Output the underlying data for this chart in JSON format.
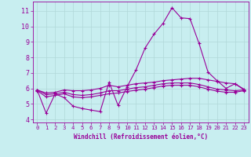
{
  "title": "",
  "xlabel": "Windchill (Refroidissement éolien,°C)",
  "background_color": "#c8eef0",
  "grid_color": "#b0d8d8",
  "line_color": "#990099",
  "xlim": [
    -0.5,
    23.5
  ],
  "ylim": [
    3.8,
    11.6
  ],
  "yticks": [
    4,
    5,
    6,
    7,
    8,
    9,
    10,
    11
  ],
  "xticks": [
    0,
    1,
    2,
    3,
    4,
    5,
    6,
    7,
    8,
    9,
    10,
    11,
    12,
    13,
    14,
    15,
    16,
    17,
    18,
    19,
    20,
    21,
    22,
    23
  ],
  "lines": [
    {
      "x": [
        0,
        1,
        2,
        3,
        4,
        5,
        6,
        7,
        8,
        9,
        10,
        11,
        12,
        13,
        14,
        15,
        16,
        17,
        18,
        19,
        20,
        21,
        22,
        23
      ],
      "y": [
        5.9,
        4.4,
        5.65,
        5.4,
        4.85,
        4.7,
        4.6,
        4.5,
        6.4,
        4.9,
        6.1,
        7.2,
        8.6,
        9.5,
        10.2,
        11.2,
        10.55,
        10.5,
        8.9,
        7.05,
        6.5,
        6.0,
        6.3,
        5.9
      ]
    },
    {
      "x": [
        0,
        1,
        2,
        3,
        4,
        5,
        6,
        7,
        8,
        9,
        10,
        11,
        12,
        13,
        14,
        15,
        16,
        17,
        18,
        19,
        20,
        21,
        22,
        23
      ],
      "y": [
        5.9,
        5.7,
        5.75,
        5.9,
        5.85,
        5.85,
        5.9,
        6.0,
        6.2,
        6.1,
        6.2,
        6.3,
        6.35,
        6.4,
        6.5,
        6.55,
        6.6,
        6.65,
        6.65,
        6.55,
        6.45,
        6.35,
        6.3,
        5.95
      ]
    },
    {
      "x": [
        0,
        1,
        2,
        3,
        4,
        5,
        6,
        7,
        8,
        9,
        10,
        11,
        12,
        13,
        14,
        15,
        16,
        17,
        18,
        19,
        20,
        21,
        22,
        23
      ],
      "y": [
        5.9,
        5.6,
        5.65,
        5.75,
        5.6,
        5.55,
        5.6,
        5.7,
        5.85,
        5.85,
        5.95,
        6.05,
        6.1,
        6.2,
        6.3,
        6.35,
        6.35,
        6.35,
        6.25,
        6.1,
        5.95,
        5.9,
        5.85,
        5.9
      ]
    },
    {
      "x": [
        0,
        1,
        2,
        3,
        4,
        5,
        6,
        7,
        8,
        9,
        10,
        11,
        12,
        13,
        14,
        15,
        16,
        17,
        18,
        19,
        20,
        21,
        22,
        23
      ],
      "y": [
        5.85,
        5.45,
        5.55,
        5.65,
        5.45,
        5.4,
        5.45,
        5.55,
        5.65,
        5.7,
        5.8,
        5.88,
        5.95,
        6.05,
        6.15,
        6.2,
        6.2,
        6.2,
        6.1,
        5.95,
        5.82,
        5.75,
        5.75,
        5.85
      ]
    }
  ]
}
